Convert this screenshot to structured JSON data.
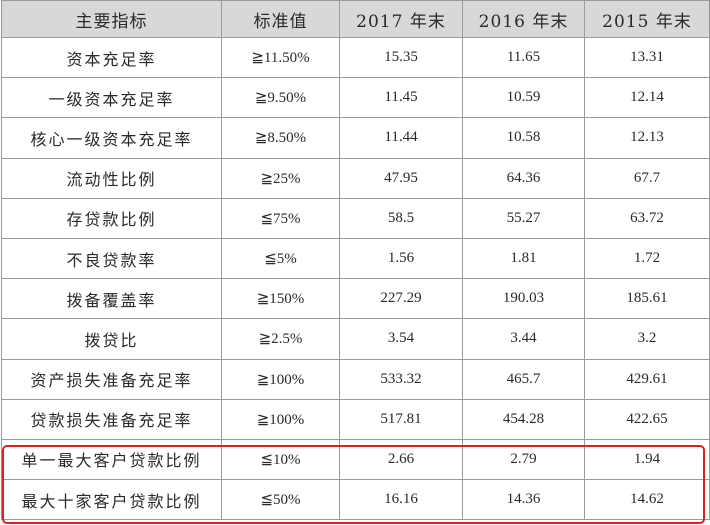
{
  "table": {
    "headers": [
      "主要指标",
      "标准值",
      "2017 年末",
      "2016 年末",
      "2015 年末"
    ],
    "rows": [
      [
        "资本充足率",
        "≧11.50%",
        "15.35",
        "11.65",
        "13.31"
      ],
      [
        "一级资本充足率",
        "≧9.50%",
        "11.45",
        "10.59",
        "12.14"
      ],
      [
        "核心一级资本充足率",
        "≧8.50%",
        "11.44",
        "10.58",
        "12.13"
      ],
      [
        "流动性比例",
        "≧25%",
        "47.95",
        "64.36",
        "67.7"
      ],
      [
        "存贷款比例",
        "≦75%",
        "58.5",
        "55.27",
        "63.72"
      ],
      [
        "不良贷款率",
        "≦5%",
        "1.56",
        "1.81",
        "1.72"
      ],
      [
        "拨备覆盖率",
        "≧150%",
        "227.29",
        "190.03",
        "185.61"
      ],
      [
        "拨贷比",
        "≧2.5%",
        "3.54",
        "3.44",
        "3.2"
      ],
      [
        "资产损失准备充足率",
        "≧100%",
        "533.32",
        "465.7",
        "429.61"
      ],
      [
        "贷款损失准备充足率",
        "≧100%",
        "517.81",
        "454.28",
        "422.65"
      ],
      [
        "单一最大客户贷款比例",
        "≦10%",
        "2.66",
        "2.79",
        "1.94"
      ],
      [
        "最大十家客户贷款比例",
        "≦50%",
        "16.16",
        "14.36",
        "14.62"
      ]
    ],
    "highlight_color": "#e02020"
  }
}
